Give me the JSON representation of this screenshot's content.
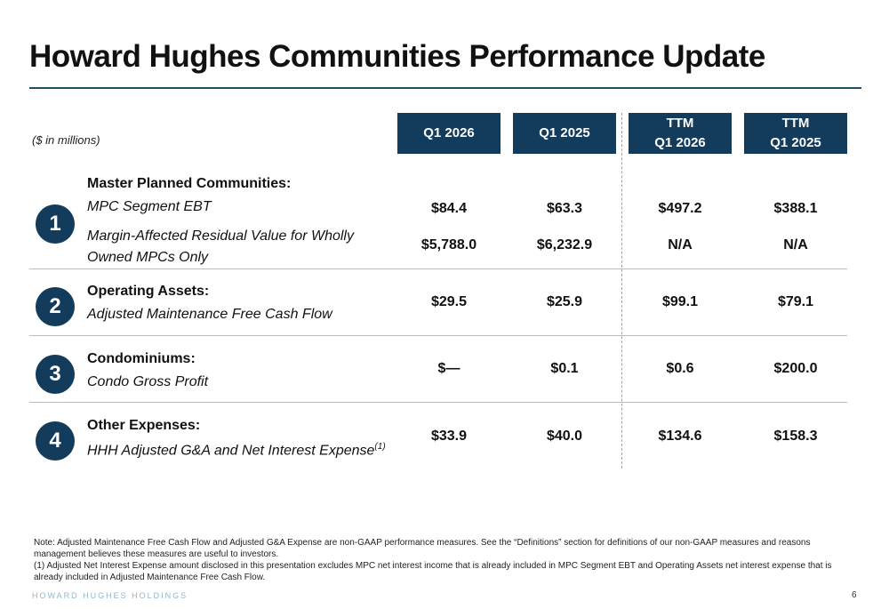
{
  "title": "Howard Hughes Communities Performance Update",
  "units_note": "($ in millions)",
  "columns": [
    {
      "line1": "Q1 2026",
      "line2": ""
    },
    {
      "line1": "Q1 2025",
      "line2": ""
    },
    {
      "line1": "TTM",
      "line2": "Q1 2026"
    },
    {
      "line1": "TTM",
      "line2": "Q1 2025"
    }
  ],
  "sections": [
    {
      "number": "1",
      "heading": "Master Planned Communities:",
      "rows": [
        {
          "label": "MPC Segment EBT",
          "values": [
            "$84.4",
            "$63.3",
            "$497.2",
            "$388.1"
          ]
        },
        {
          "label": "Margin-Affected Residual Value for Wholly Owned MPCs Only",
          "values": [
            "$5,788.0",
            "$6,232.9",
            "N/A",
            "N/A"
          ]
        }
      ]
    },
    {
      "number": "2",
      "heading": "Operating Assets:",
      "rows": [
        {
          "label": "Adjusted Maintenance Free Cash Flow",
          "values": [
            "$29.5",
            "$25.9",
            "$99.1",
            "$79.1"
          ]
        }
      ]
    },
    {
      "number": "3",
      "heading": "Condominiums:",
      "rows": [
        {
          "label": "Condo Gross Profit",
          "values": [
            "$—",
            "$0.1",
            "$0.6",
            "$200.0"
          ]
        }
      ]
    },
    {
      "number": "4",
      "heading": "Other Expenses:",
      "rows": [
        {
          "label": "HHH Adjusted G&A and Net Interest Expense",
          "sup": "(1)",
          "values": [
            "$33.9",
            "$40.0",
            "$134.6",
            "$158.3"
          ]
        }
      ]
    }
  ],
  "notes": [
    "Note: Adjusted Maintenance Free Cash Flow and Adjusted G&A Expense are non-GAAP performance measures. See the “Definitions” section for definitions of our non-GAAP measures and reasons management believes these measures are useful to investors.",
    "(1) Adjusted Net Interest Expense amount disclosed in this presentation excludes MPC net interest income that is already included in MPC Segment EBT and Operating Assets net interest expense that is already included in Adjusted Maintenance Free Cash Flow."
  ],
  "footer_brand": "HOWARD HUGHES HOLDINGS",
  "page_number": "6",
  "colors": {
    "navy": "#123b5c",
    "rule": "#1f4e6b",
    "brand_light": "#8fb6cc"
  }
}
